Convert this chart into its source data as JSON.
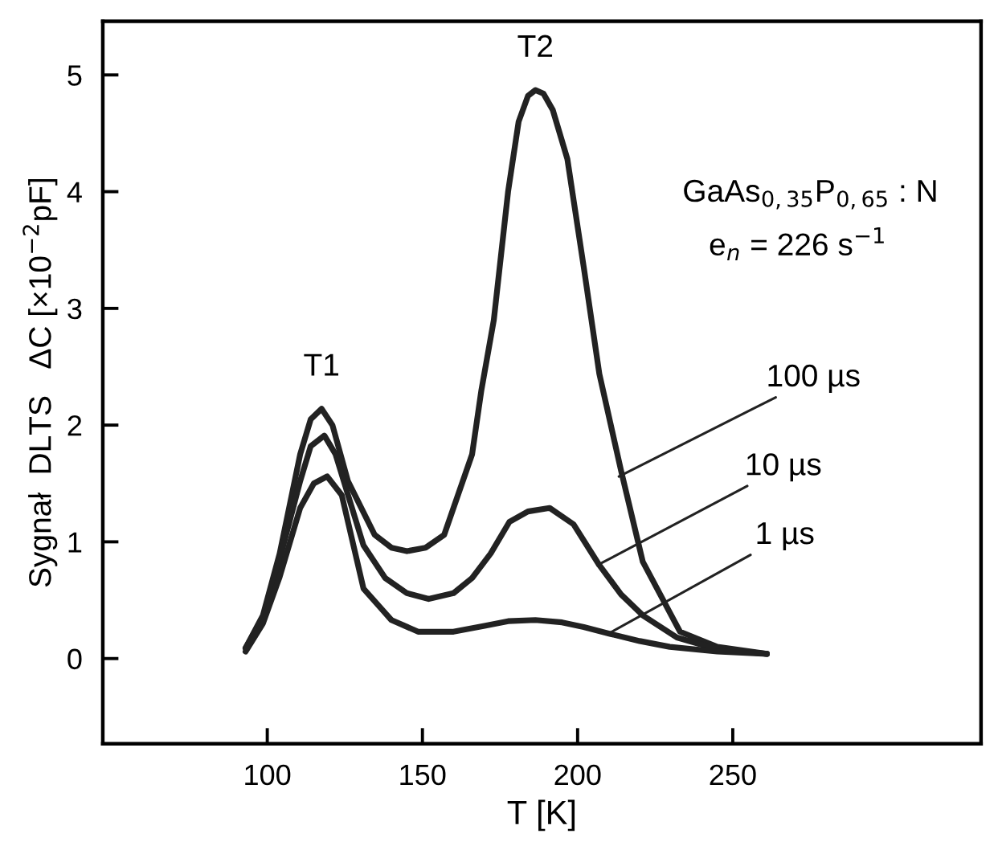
{
  "chart_data": {
    "type": "line",
    "xlabel": "T [K]",
    "ylabel": "Sygnał  DLTS   ΔC [×10$^{−2}$pF]",
    "xlim": [
      47,
      330
    ],
    "ylim": [
      -0.73,
      5.46
    ],
    "xticks": [
      100,
      150,
      200,
      250
    ],
    "yticks": [
      0,
      1,
      2,
      3,
      4,
      5
    ],
    "grid": false,
    "legend": false,
    "marker": "none",
    "line_style": "solid",
    "series": [
      {
        "color": "#222222",
        "x": [
          93,
          98.6,
          104,
          110.6,
          114,
          117.5,
          121,
          126,
          134.6,
          140,
          145,
          151,
          157,
          166,
          169,
          173,
          177.6,
          181,
          184,
          186.4,
          189,
          192,
          196.7,
          202,
          207,
          214,
          221,
          233,
          245,
          261
        ],
        "values": [
          0.09,
          0.37,
          0.9,
          1.75,
          2.05,
          2.14,
          2.0,
          1.52,
          1.06,
          0.95,
          0.92,
          0.95,
          1.06,
          1.75,
          2.3,
          2.9,
          4.0,
          4.6,
          4.82,
          4.87,
          4.84,
          4.7,
          4.28,
          3.35,
          2.44,
          1.61,
          0.83,
          0.23,
          0.1,
          0.04
        ]
      },
      {
        "color": "#222222",
        "x": [
          93,
          98.6,
          104,
          110.6,
          114,
          118.4,
          122,
          131,
          138,
          145,
          152,
          160,
          166,
          172,
          178,
          184,
          191,
          198.7,
          207,
          214,
          221,
          232,
          245,
          261
        ],
        "values": [
          0.09,
          0.35,
          0.85,
          1.52,
          1.82,
          1.91,
          1.75,
          0.97,
          0.69,
          0.56,
          0.51,
          0.56,
          0.69,
          0.9,
          1.17,
          1.26,
          1.29,
          1.15,
          0.8,
          0.55,
          0.37,
          0.18,
          0.08,
          0.04
        ]
      },
      {
        "color": "#222222",
        "x": [
          93,
          98.6,
          104,
          110.6,
          115,
          119.3,
          124,
          131,
          140,
          148.6,
          160,
          170,
          177.6,
          186.4,
          195,
          202,
          210.7,
          220,
          229.7,
          245,
          261
        ],
        "values": [
          0.06,
          0.3,
          0.7,
          1.29,
          1.5,
          1.56,
          1.4,
          0.6,
          0.33,
          0.23,
          0.23,
          0.28,
          0.32,
          0.33,
          0.31,
          0.27,
          0.21,
          0.15,
          0.1,
          0.06,
          0.04
        ]
      }
    ],
    "annotations": [
      {
        "text": "T1",
        "x": 117.5,
        "y": 2.14
      },
      {
        "text": "T2",
        "x": 186.4,
        "y": 4.87
      },
      "GaAs$_{0,35}$P$_{0,65}$ : N",
      "e$_{n}$ = 226 s$^{−1}$",
      {
        "text": "100 µs",
        "x": 213.3,
        "y": 1.56
      },
      {
        "text": "10 µs",
        "x": 206.4,
        "y": 0.8
      },
      {
        "text": "1 µs",
        "x": 209.7,
        "y": 0.21
      }
    ]
  }
}
